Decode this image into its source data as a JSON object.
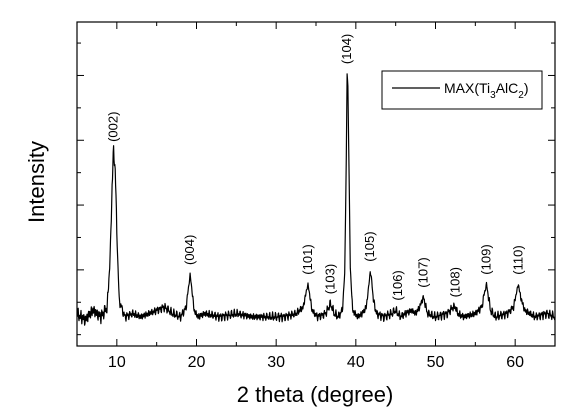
{
  "chart_data": {
    "type": "line",
    "xlabel": "2 theta (degree)",
    "ylabel": "Intensity",
    "xlim": [
      5,
      65
    ],
    "ylim": [
      0,
      100
    ],
    "x_ticks": [
      10,
      20,
      30,
      40,
      50,
      60
    ],
    "y_ticks_labeled": false,
    "grid": false,
    "legend": {
      "placement": "top-right",
      "entries": [
        {
          "prefix": "MAX(Ti",
          "sub1": "3",
          "mid": "AlC",
          "sub2": "2",
          "suffix": ")"
        }
      ]
    },
    "series": [
      {
        "baseline": 9,
        "x": [
          5,
          6,
          7,
          8,
          8.8,
          9.2,
          9.4,
          9.6,
          9.8,
          10.0,
          10.3,
          11,
          12,
          13,
          14,
          15,
          16,
          17,
          18,
          18.7,
          19.0,
          19.2,
          19.4,
          19.7,
          20.2,
          21,
          23,
          25,
          27,
          29,
          31,
          32.5,
          33.4,
          33.8,
          34.0,
          34.2,
          34.5,
          35.2,
          36.2,
          36.6,
          36.8,
          37.0,
          37.3,
          37.8,
          38.3,
          38.6,
          38.8,
          38.9,
          39.0,
          39.1,
          39.3,
          39.6,
          40.2,
          40.8,
          41.3,
          41.6,
          41.8,
          42.0,
          42.2,
          42.6,
          43.5,
          44.5,
          45.0,
          45.3,
          45.6,
          46.2,
          47.0,
          47.5,
          48.0,
          48.3,
          48.5,
          48.7,
          49.0,
          50,
          51.5,
          52.2,
          52.5,
          52.8,
          53.5,
          55,
          55.8,
          56.2,
          56.4,
          56.6,
          56.9,
          57.5,
          59,
          59.8,
          60.2,
          60.4,
          60.7,
          61.2,
          62.5,
          64,
          65
        ],
        "y": [
          10,
          8,
          11,
          9,
          12,
          30,
          50,
          60,
          55,
          35,
          14,
          9,
          10,
          9,
          10,
          11,
          12,
          10,
          9,
          12,
          18,
          22,
          18,
          11,
          9,
          10,
          9,
          10,
          9,
          9,
          9,
          10,
          12,
          17,
          19,
          16,
          11,
          9,
          10,
          12,
          13,
          12,
          10,
          9,
          11,
          22,
          58,
          84,
          80,
          62,
          24,
          11,
          9,
          10,
          12,
          18,
          23,
          20,
          14,
          10,
          9,
          10,
          11,
          10,
          9,
          10,
          11,
          10,
          12,
          14,
          15,
          13,
          10,
          9,
          10,
          12,
          12,
          10,
          9,
          10,
          12,
          17,
          19,
          16,
          11,
          9,
          10,
          12,
          17,
          19,
          15,
          11,
          9,
          10,
          9
        ]
      }
    ],
    "annotations": [
      {
        "text": "(002)",
        "x": 9.6,
        "y": 63
      },
      {
        "text": "(004)",
        "x": 19.2,
        "y": 25
      },
      {
        "text": "(101)",
        "x": 34.0,
        "y": 22
      },
      {
        "text": "(103)",
        "x": 36.8,
        "y": 16
      },
      {
        "text": "(104)",
        "x": 38.9,
        "y": 87
      },
      {
        "text": "(105)",
        "x": 41.8,
        "y": 26
      },
      {
        "text": "(106)",
        "x": 45.3,
        "y": 14
      },
      {
        "text": "(107)",
        "x": 48.5,
        "y": 18
      },
      {
        "text": "(108)",
        "x": 52.5,
        "y": 15
      },
      {
        "text": "(109)",
        "x": 56.4,
        "y": 22
      },
      {
        "text": "(110)",
        "x": 60.4,
        "y": 22
      }
    ]
  }
}
